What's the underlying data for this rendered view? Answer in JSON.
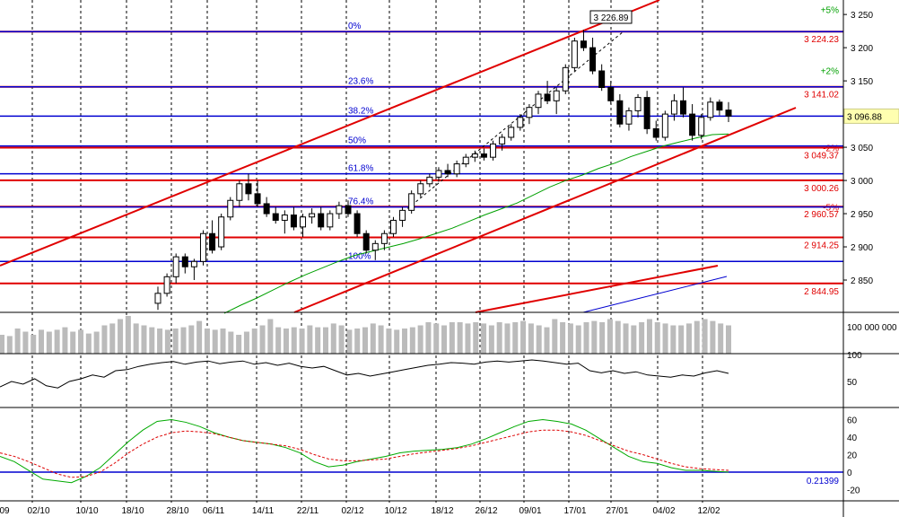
{
  "chart_data": [
    {
      "panel": "price",
      "type": "candlestick",
      "x_labels": [
        "09",
        "02/10",
        "10/10",
        "18/10",
        "28/10",
        "06/11",
        "14/11",
        "22/11",
        "02/12",
        "10/12",
        "18/12",
        "26/12",
        "09/01",
        "17/01",
        "27/01",
        "04/02",
        "12/02"
      ],
      "ylim": [
        2800,
        3260
      ],
      "y_ticks": [
        2850,
        2900,
        2950,
        3000,
        3050,
        3100,
        3150,
        3200,
        3250
      ],
      "y_tick_labels": [
        "2 850",
        "2 900",
        "2 950",
        "3 000",
        "3 050",
        "3 100",
        "3 150",
        "3 200",
        "3 250"
      ],
      "last_price": 3096.88,
      "last_price_label": "3 096.88",
      "peak_label": "3 226.89",
      "candles_ohlc": [
        [
          2815,
          2840,
          2805,
          2830
        ],
        [
          2830,
          2860,
          2825,
          2855
        ],
        [
          2855,
          2890,
          2845,
          2885
        ],
        [
          2885,
          2890,
          2860,
          2870
        ],
        [
          2870,
          2882,
          2850,
          2878
        ],
        [
          2878,
          2925,
          2872,
          2920
        ],
        [
          2920,
          2940,
          2890,
          2895
        ],
        [
          2900,
          2950,
          2895,
          2945
        ],
        [
          2945,
          2975,
          2940,
          2970
        ],
        [
          2970,
          3000,
          2960,
          2995
        ],
        [
          2995,
          3010,
          2970,
          2980
        ],
        [
          2980,
          3000,
          2960,
          2965
        ],
        [
          2965,
          2975,
          2945,
          2950
        ],
        [
          2950,
          2960,
          2935,
          2940
        ],
        [
          2940,
          2955,
          2920,
          2948
        ],
        [
          2948,
          2960,
          2925,
          2930
        ],
        [
          2930,
          2950,
          2915,
          2945
        ],
        [
          2945,
          2958,
          2935,
          2950
        ],
        [
          2950,
          2960,
          2925,
          2930
        ],
        [
          2930,
          2955,
          2925,
          2950
        ],
        [
          2950,
          2968,
          2942,
          2962
        ],
        [
          2962,
          2970,
          2945,
          2950
        ],
        [
          2950,
          2955,
          2915,
          2920
        ],
        [
          2920,
          2925,
          2890,
          2895
        ],
        [
          2895,
          2910,
          2880,
          2905
        ],
        [
          2905,
          2925,
          2895,
          2920
        ],
        [
          2920,
          2945,
          2915,
          2940
        ],
        [
          2940,
          2960,
          2930,
          2955
        ],
        [
          2955,
          2985,
          2950,
          2980
        ],
        [
          2980,
          3000,
          2975,
          2995
        ],
        [
          2995,
          3010,
          2990,
          3005
        ],
        [
          3005,
          3020,
          2998,
          3015
        ],
        [
          3015,
          3025,
          3005,
          3010
        ],
        [
          3010,
          3030,
          3005,
          3025
        ],
        [
          3025,
          3040,
          3020,
          3035
        ],
        [
          3035,
          3045,
          3028,
          3040
        ],
        [
          3040,
          3048,
          3030,
          3035
        ],
        [
          3035,
          3060,
          3030,
          3055
        ],
        [
          3055,
          3070,
          3045,
          3065
        ],
        [
          3065,
          3085,
          3060,
          3080
        ],
        [
          3080,
          3100,
          3075,
          3095
        ],
        [
          3095,
          3115,
          3085,
          3110
        ],
        [
          3110,
          3135,
          3100,
          3130
        ],
        [
          3130,
          3150,
          3115,
          3120
        ],
        [
          3120,
          3140,
          3100,
          3135
        ],
        [
          3135,
          3175,
          3130,
          3170
        ],
        [
          3170,
          3215,
          3165,
          3210
        ],
        [
          3210,
          3227,
          3195,
          3200
        ],
        [
          3200,
          3215,
          3160,
          3165
        ],
        [
          3165,
          3175,
          3135,
          3140
        ],
        [
          3140,
          3150,
          3115,
          3120
        ],
        [
          3120,
          3130,
          3080,
          3085
        ],
        [
          3085,
          3110,
          3075,
          3105
        ],
        [
          3105,
          3130,
          3095,
          3125
        ],
        [
          3125,
          3135,
          3070,
          3078
        ],
        [
          3078,
          3090,
          3060,
          3065
        ],
        [
          3065,
          3105,
          3060,
          3100
        ],
        [
          3100,
          3130,
          3090,
          3120
        ],
        [
          3120,
          3140,
          3095,
          3100
        ],
        [
          3100,
          3115,
          3060,
          3068
        ],
        [
          3068,
          3100,
          3062,
          3095
        ],
        [
          3095,
          3125,
          3090,
          3118
        ],
        [
          3118,
          3122,
          3098,
          3106
        ],
        [
          3106,
          3118,
          3088,
          3097
        ]
      ],
      "ma_values": [
        2800,
        2812,
        2823,
        2835,
        2847,
        2858,
        2868,
        2878,
        2887,
        2893,
        2899,
        2905,
        2912,
        2920,
        2928,
        2938,
        2948,
        2957,
        2966,
        2978,
        2990,
        3000,
        3008,
        3018,
        3026,
        3036,
        3044,
        3052,
        3058,
        3064,
        3069,
        3070
      ],
      "fibonacci": [
        {
          "label": "0%",
          "value": 3224.23
        },
        {
          "label": "23.6%",
          "value": 3141.02
        },
        {
          "label": "38.2%",
          "value": 3096.88
        },
        {
          "label": "50%",
          "value": 3052
        },
        {
          "label": "61.8%",
          "value": 3010
        },
        {
          "label": "76.4%",
          "value": 2960
        },
        {
          "label": "100%",
          "value": 2878
        }
      ],
      "horizontal_levels": [
        {
          "value": 3224.23,
          "label": "3 224.23"
        },
        {
          "value": 3141.02,
          "label": "3 141.02"
        },
        {
          "value": 3049.37,
          "label": "3 049.37"
        },
        {
          "value": 3000.26,
          "label": "3 000.26"
        },
        {
          "value": 2960.57,
          "label": "2 960.57"
        },
        {
          "value": 2914.25,
          "label": "2 914.25"
        },
        {
          "value": 2844.95,
          "label": "2 844.95"
        }
      ],
      "percent_markers": [
        {
          "label": "+5%",
          "value": 3252
        },
        {
          "label": "+2%",
          "value": 3160
        },
        {
          "label": "-2%",
          "value": 3044
        },
        {
          "label": "-5%",
          "value": 2955
        }
      ]
    },
    {
      "panel": "volume",
      "type": "bar",
      "y_tick_label": "100 000 000",
      "values": [
        30,
        28,
        40,
        35,
        30,
        38,
        35,
        38,
        42,
        35,
        38,
        32,
        35,
        45,
        48,
        55,
        60,
        48,
        45,
        42,
        40,
        38,
        40,
        42,
        45,
        52,
        40,
        38,
        40,
        35,
        30,
        35,
        40,
        45,
        55,
        42,
        40,
        42,
        40,
        45,
        42,
        42,
        48,
        45,
        38,
        40,
        42,
        48,
        45,
        40,
        38,
        40,
        42,
        45,
        50,
        48,
        45,
        50,
        50,
        48,
        50,
        48,
        45,
        50,
        48,
        50,
        52,
        48,
        45,
        42,
        55,
        50,
        48,
        45,
        50,
        52,
        50,
        55,
        52,
        48,
        45,
        50,
        55,
        50,
        48,
        45,
        45,
        48,
        52,
        55,
        52,
        48,
        45
      ]
    },
    {
      "panel": "oscillator",
      "type": "line",
      "ylim": [
        0,
        100
      ],
      "y_ticks": [
        50,
        100
      ],
      "y_tick_labels": [
        "50",
        "100"
      ],
      "values": [
        40,
        50,
        45,
        55,
        42,
        38,
        50,
        55,
        62,
        58,
        70,
        72,
        78,
        82,
        85,
        87,
        82,
        86,
        88,
        83,
        86,
        88,
        82,
        85,
        80,
        84,
        78,
        75,
        78,
        70,
        62,
        65,
        60,
        64,
        68,
        72,
        76,
        80,
        82,
        85,
        84,
        82,
        86,
        88,
        86,
        88,
        90,
        88,
        85,
        82,
        84,
        70,
        66,
        70,
        65,
        68,
        62,
        60,
        58,
        62,
        60,
        66,
        70,
        65
      ]
    },
    {
      "panel": "macd",
      "type": "line",
      "ylim": [
        -28,
        66
      ],
      "y_ticks": [
        -20,
        0,
        20,
        40,
        60
      ],
      "y_tick_labels": [
        "-20",
        "0",
        "20",
        "40",
        "60"
      ],
      "current_label": "0.21399",
      "series": [
        {
          "color": "#00aa00",
          "values": [
            18,
            12,
            2,
            -8,
            -10,
            -12,
            -5,
            5,
            20,
            35,
            48,
            58,
            60,
            57,
            52,
            45,
            40,
            36,
            34,
            32,
            28,
            22,
            12,
            6,
            8,
            12,
            15,
            18,
            22,
            24,
            25,
            26,
            28,
            32,
            38,
            45,
            52,
            58,
            60,
            58,
            55,
            48,
            38,
            28,
            18,
            12,
            10,
            5,
            2,
            2,
            1,
            0
          ]
        },
        {
          "color": "#dd0000",
          "values": [
            22,
            18,
            12,
            5,
            -2,
            -6,
            -5,
            0,
            10,
            22,
            32,
            40,
            45,
            47,
            46,
            44,
            40,
            36,
            34,
            32,
            30,
            26,
            20,
            15,
            13,
            13,
            14,
            15,
            18,
            21,
            23,
            25,
            27,
            30,
            34,
            38,
            42,
            46,
            48,
            48,
            46,
            42,
            36,
            30,
            24,
            20,
            15,
            10,
            6,
            4,
            3,
            2
          ]
        }
      ]
    }
  ]
}
